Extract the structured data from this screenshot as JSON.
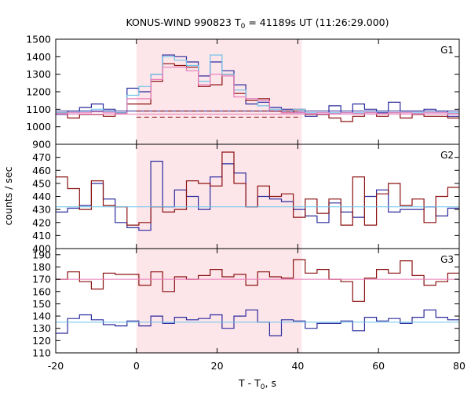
{
  "chart_data": {
    "type": "line",
    "title": "KONUS-WIND 990823 T₀ = 41189s UT (11:26:29.000)",
    "title_parts": {
      "prefix": "KONUS-WIND 990823 T",
      "sub": "0",
      "suffix": " = 41189s UT (11:26:29.000)"
    },
    "xlabel": "T - T₀, s",
    "xlabel_parts": {
      "prefix": "T - T",
      "sub": "0",
      "suffix": ", s"
    },
    "ylabel": "counts / sec",
    "xlim": [
      -20,
      80
    ],
    "x_ticks": [
      -20,
      0,
      20,
      40,
      60,
      80
    ],
    "highlight_interval": [
      0,
      40.96
    ],
    "highlight_color": "#fde6ea",
    "bin_width": 2.944,
    "bin_start": -20,
    "grid": false,
    "colors": {
      "blue": "#2b2b9e",
      "red": "#8b1010",
      "cyan": "#6ec3ea",
      "pink": "#e87ab8"
    },
    "panels": [
      {
        "label": "G1",
        "ylim": [
          900,
          1500
        ],
        "y_ticks": [
          900,
          1000,
          1100,
          1200,
          1300,
          1400,
          1500
        ],
        "series": [
          {
            "color_key": "blue",
            "style": "step",
            "values": [
              1070,
              1090,
              1110,
              1130,
              1100,
              1080,
              1220,
              1200,
              1300,
              1410,
              1400,
              1370,
              1290,
              1370,
              1320,
              1240,
              1130,
              1140,
              1110,
              1100,
              1080,
              1060,
              1070,
              1120,
              1080,
              1130,
              1100,
              1080,
              1140,
              1090,
              1090,
              1100,
              1090,
              1060
            ]
          },
          {
            "color_key": "red",
            "style": "step",
            "values": [
              1080,
              1050,
              1070,
              1070,
              1060,
              1080,
              1130,
              1130,
              1260,
              1360,
              1350,
              1340,
              1230,
              1240,
              1300,
              1190,
              1150,
              1160,
              1090,
              1080,
              1100,
              1070,
              1070,
              1050,
              1030,
              1060,
              1080,
              1060,
              1080,
              1050,
              1070,
              1060,
              1060,
              1050
            ]
          },
          {
            "color_key": "cyan",
            "style": "step",
            "values": [
              1080,
              1080,
              1090,
              1100,
              1090,
              1080,
              1180,
              1230,
              1300,
              1400,
              1380,
              1350,
              1260,
              1410,
              1300,
              1210,
              1160,
              1120,
              1100,
              1090,
              1100,
              1080,
              1080,
              1080,
              1080,
              1080,
              1080,
              1090,
              1080,
              1080,
              1080,
              1080,
              1080,
              1080
            ]
          },
          {
            "color_key": "pink",
            "style": "step",
            "values": [
              1075,
              1080,
              1080,
              1085,
              1080,
              1075,
              1160,
              1160,
              1270,
              1340,
              1340,
              1320,
              1240,
              1300,
              1290,
              1170,
              1160,
              1150,
              1090,
              1080,
              1080,
              1075,
              1080,
              1075,
              1080,
              1075,
              1080,
              1075,
              1080,
              1080,
              1075,
              1080,
              1080,
              1075
            ]
          },
          {
            "color_key": "blue",
            "style": "hline",
            "value": 1090
          },
          {
            "color_key": "red",
            "style": "dashed",
            "value": 1090,
            "range": [
              0,
              40.96
            ]
          },
          {
            "color_key": "red",
            "style": "dashed",
            "value": 1055,
            "range": [
              0,
              40.96
            ]
          },
          {
            "color_key": "pink",
            "style": "hline",
            "value": 1072
          }
        ]
      },
      {
        "label": "G2",
        "ylim": [
          400,
          480
        ],
        "y_ticks": [
          400,
          410,
          420,
          430,
          440,
          450,
          460,
          470
        ],
        "series": [
          {
            "color_key": "blue",
            "style": "step",
            "values": [
              428,
              431,
              433,
              450,
              438,
              420,
              416,
              414,
              467,
              432,
              445,
              440,
              430,
              455,
              465,
              458,
              432,
              440,
              438,
              436,
              430,
              425,
              420,
              435,
              428,
              424,
              440,
              445,
              428,
              430,
              430,
              432,
              425,
              431
            ]
          },
          {
            "color_key": "red",
            "style": "step",
            "values": [
              455,
              446,
              430,
              452,
              433,
              432,
              418,
              420,
              432,
              428,
              430,
              452,
              450,
              448,
              474,
              450,
              432,
              448,
              440,
              442,
              424,
              438,
              427,
              438,
              418,
              455,
              418,
              442,
              450,
              433,
              438,
              420,
              440,
              447
            ]
          },
          {
            "color_key": "cyan",
            "style": "hline",
            "value": 432
          }
        ]
      },
      {
        "label": "G3",
        "ylim": [
          110,
          195
        ],
        "y_ticks": [
          110,
          120,
          130,
          140,
          150,
          160,
          170,
          180,
          190
        ],
        "series": [
          {
            "color_key": "blue",
            "style": "step",
            "values": [
              126,
              138,
              141,
              137,
              133,
              132,
              136,
              132,
              140,
              134,
              139,
              137,
              138,
              141,
              130,
              140,
              145,
              135,
              124,
              137,
              136,
              130,
              134,
              134,
              136,
              128,
              139,
              136,
              138,
              134,
              139,
              145,
              139,
              137
            ]
          },
          {
            "color_key": "red",
            "style": "step",
            "values": [
              170,
              176,
              168,
              162,
              175,
              174,
              174,
              165,
              176,
              160,
              172,
              170,
              173,
              178,
              172,
              174,
              165,
              176,
              172,
              171,
              186,
              175,
              178,
              170,
              168,
              152,
              171,
              178,
              175,
              185,
              173,
              165,
              168,
              175
            ]
          },
          {
            "color_key": "cyan",
            "style": "hline",
            "value": 135
          },
          {
            "color_key": "pink",
            "style": "hline",
            "value": 170
          }
        ]
      }
    ]
  }
}
